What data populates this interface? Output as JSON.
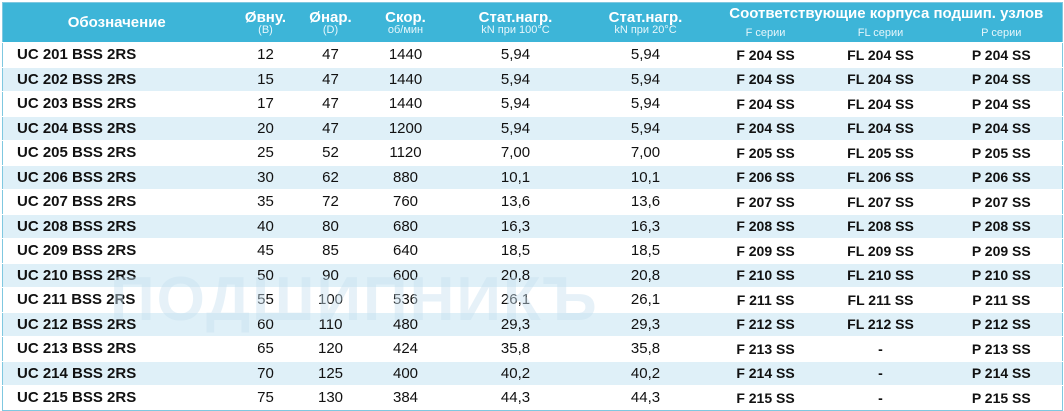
{
  "header": {
    "columns": [
      {
        "title": "Обозначение"
      },
      {
        "title": "Øвну.",
        "sub": "(B)"
      },
      {
        "title": "Øнар.",
        "sub": "(D)"
      },
      {
        "title": "Скор.",
        "sub": "об/мин"
      },
      {
        "title": "Стат.нагр.",
        "sub": "kN при 100°C"
      },
      {
        "title": "Стат.нагр.",
        "sub": "kN при 20°C"
      }
    ],
    "group": {
      "title": "Соответствующие корпуса подшип. узлов",
      "subs": [
        "F  серии",
        "FL  серии",
        "P  серии"
      ]
    }
  },
  "table": {
    "rows": [
      [
        "UC 201 BSS 2RS",
        "12",
        "47",
        "1440",
        "5,94",
        "5,94",
        "F 204 SS",
        "FL 204 SS",
        "P 204 SS"
      ],
      [
        "UC 202 BSS 2RS",
        "15",
        "47",
        "1440",
        "5,94",
        "5,94",
        "F 204 SS",
        "FL 204 SS",
        "P 204 SS"
      ],
      [
        "UC 203 BSS 2RS",
        "17",
        "47",
        "1440",
        "5,94",
        "5,94",
        "F 204 SS",
        "FL 204 SS",
        "P 204 SS"
      ],
      [
        "UC 204 BSS 2RS",
        "20",
        "47",
        "1200",
        "5,94",
        "5,94",
        "F 204 SS",
        "FL 204 SS",
        "P 204 SS"
      ],
      [
        "UC 205 BSS 2RS",
        "25",
        "52",
        "1120",
        "7,00",
        "7,00",
        "F 205 SS",
        "FL 205 SS",
        "P 205 SS"
      ],
      [
        "UC 206 BSS 2RS",
        "30",
        "62",
        "880",
        "10,1",
        "10,1",
        "F 206 SS",
        "FL 206 SS",
        "P 206 SS"
      ],
      [
        "UC 207 BSS 2RS",
        "35",
        "72",
        "760",
        "13,6",
        "13,6",
        "F 207 SS",
        "FL 207 SS",
        "P 207 SS"
      ],
      [
        "UC 208 BSS 2RS",
        "40",
        "80",
        "680",
        "16,3",
        "16,3",
        "F 208 SS",
        "FL 208 SS",
        "P 208 SS"
      ],
      [
        "UC 209 BSS 2RS",
        "45",
        "85",
        "640",
        "18,5",
        "18,5",
        "F 209 SS",
        "FL 209 SS",
        "P 209 SS"
      ],
      [
        "UC 210 BSS 2RS",
        "50",
        "90",
        "600",
        "20,8",
        "20,8",
        "F 210 SS",
        "FL 210 SS",
        "P 210 SS"
      ],
      [
        "UC 211 BSS 2RS",
        "55",
        "100",
        "536",
        "26,1",
        "26,1",
        "F 211 SS",
        "FL 211 SS",
        "P 211 SS"
      ],
      [
        "UC 212 BSS 2RS",
        "60",
        "110",
        "480",
        "29,3",
        "29,3",
        "F 212 SS",
        "FL 212 SS",
        "P 212 SS"
      ],
      [
        "UC 213 BSS 2RS",
        "65",
        "120",
        "424",
        "35,8",
        "35,8",
        "F 213 SS",
        "-",
        "P 213 SS"
      ],
      [
        "UC 214 BSS 2RS",
        "70",
        "125",
        "400",
        "40,2",
        "40,2",
        "F 214 SS",
        "-",
        "P 214 SS"
      ],
      [
        "UC 215 BSS 2RS",
        "75",
        "130",
        "384",
        "44,3",
        "44,3",
        "F 215 SS",
        "-",
        "P 215 SS"
      ]
    ]
  },
  "watermark": "ПОДШИПНИКЪ"
}
